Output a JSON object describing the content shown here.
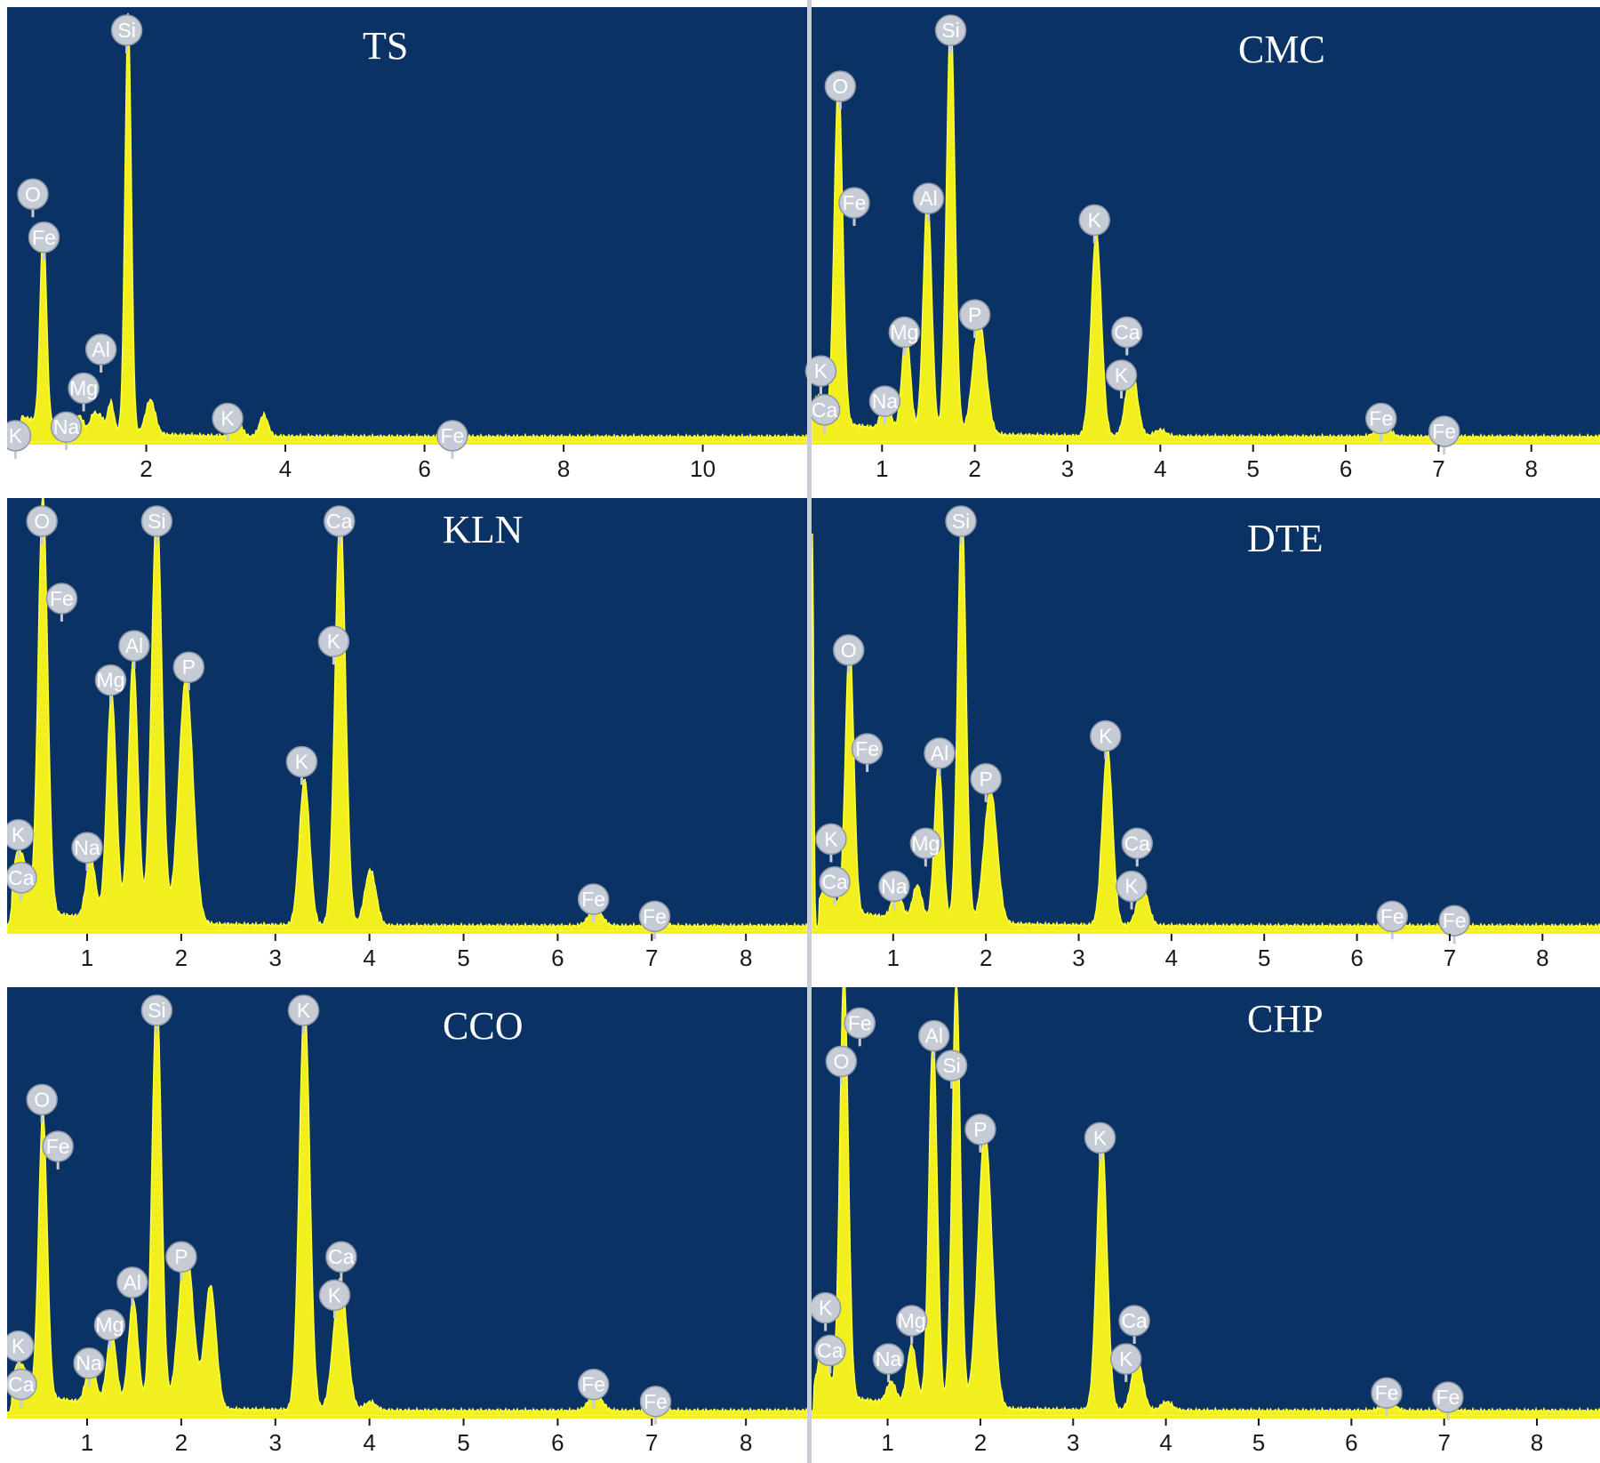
{
  "figure": {
    "description_free": true,
    "layout": "3 rows x 2 columns",
    "colors": {
      "plot_background": "#0a3264",
      "spectrum": "#f2ef1f",
      "badge": "#c6ccd6",
      "title": "#ffffff"
    }
  },
  "chart_data": [
    {
      "type": "area",
      "title": "TS",
      "xlabel": "",
      "ylabel": "",
      "xlim": [
        0,
        11.5
      ],
      "ylim": [
        0,
        100
      ],
      "xticks": [
        2,
        4,
        6,
        8,
        10
      ],
      "tick_labels": [
        "2",
        "4",
        "6",
        "8",
        "10"
      ],
      "peaks": [
        {
          "x": 0.52,
          "y": 46,
          "w": 0.045
        },
        {
          "x": 1.04,
          "y": 3,
          "w": 0.05
        },
        {
          "x": 1.25,
          "y": 4,
          "w": 0.05
        },
        {
          "x": 1.35,
          "y": 3,
          "w": 0.04
        },
        {
          "x": 1.49,
          "y": 7,
          "w": 0.045
        },
        {
          "x": 1.74,
          "y": 97,
          "w": 0.045
        },
        {
          "x": 2.06,
          "y": 8,
          "w": 0.07
        },
        {
          "x": 3.31,
          "y": 4,
          "w": 0.06
        },
        {
          "x": 3.69,
          "y": 5,
          "w": 0.06
        }
      ],
      "labels": [
        {
          "el": "Si",
          "x": 1.72,
          "y": 100
        },
        {
          "el": "O",
          "x": 0.37,
          "y": 62
        },
        {
          "el": "Fe",
          "x": 0.53,
          "y": 52
        },
        {
          "el": "Al",
          "x": 1.35,
          "y": 26
        },
        {
          "el": "Mg",
          "x": 1.1,
          "y": 17
        },
        {
          "el": "Na",
          "x": 0.85,
          "y": 8
        },
        {
          "el": "K",
          "x": 0.12,
          "y": 6
        },
        {
          "el": "K",
          "x": 3.17,
          "y": 10
        },
        {
          "el": "Fe",
          "x": 6.4,
          "y": 6
        }
      ]
    },
    {
      "type": "area",
      "title": "CMC",
      "xlabel": "",
      "ylabel": "",
      "xlim": [
        0.24,
        8.74
      ],
      "ylim": [
        0,
        100
      ],
      "xticks": [
        1,
        2,
        3,
        4,
        5,
        6,
        7,
        8
      ],
      "tick_labels": [
        "1",
        "2",
        "3",
        "4",
        "5",
        "6",
        "7",
        "8"
      ],
      "peaks": [
        {
          "x": 0.28,
          "y": 3,
          "w": 0.04
        },
        {
          "x": 0.34,
          "y": 4,
          "w": 0.04
        },
        {
          "x": 0.53,
          "y": 80,
          "w": 0.045
        },
        {
          "x": 1.04,
          "y": 8,
          "w": 0.045
        },
        {
          "x": 1.26,
          "y": 23,
          "w": 0.045
        },
        {
          "x": 1.49,
          "y": 55,
          "w": 0.045
        },
        {
          "x": 1.74,
          "y": 97,
          "w": 0.045
        },
        {
          "x": 2.05,
          "y": 26,
          "w": 0.07
        },
        {
          "x": 3.31,
          "y": 47,
          "w": 0.055
        },
        {
          "x": 3.69,
          "y": 16,
          "w": 0.06
        },
        {
          "x": 4.0,
          "y": 1.5,
          "w": 0.06
        },
        {
          "x": 6.4,
          "y": 3,
          "w": 0.07
        },
        {
          "x": 7.06,
          "y": 1,
          "w": 0.07
        }
      ],
      "labels": [
        {
          "el": "Si",
          "x": 1.74,
          "y": 100
        },
        {
          "el": "O",
          "x": 0.55,
          "y": 87
        },
        {
          "el": "Fe",
          "x": 0.7,
          "y": 60
        },
        {
          "el": "Al",
          "x": 1.5,
          "y": 61
        },
        {
          "el": "K",
          "x": 3.29,
          "y": 56
        },
        {
          "el": "P",
          "x": 2.0,
          "y": 34
        },
        {
          "el": "Mg",
          "x": 1.24,
          "y": 30
        },
        {
          "el": "Ca",
          "x": 3.64,
          "y": 30
        },
        {
          "el": "K",
          "x": 3.58,
          "y": 20
        },
        {
          "el": "K",
          "x": 0.34,
          "y": 21
        },
        {
          "el": "Ca",
          "x": 0.38,
          "y": 12
        },
        {
          "el": "Na",
          "x": 1.03,
          "y": 14
        },
        {
          "el": "Fe",
          "x": 6.38,
          "y": 10
        },
        {
          "el": "Fe",
          "x": 7.06,
          "y": 7
        }
      ]
    },
    {
      "type": "area",
      "title": "KLN",
      "xlabel": "",
      "ylabel": "",
      "xlim": [
        0.15,
        8.65
      ],
      "ylim": [
        0,
        100
      ],
      "xticks": [
        1,
        2,
        3,
        4,
        5,
        6,
        7,
        8
      ],
      "tick_labels": [
        "1",
        "2",
        "3",
        "4",
        "5",
        "6",
        "7",
        "8"
      ],
      "peaks": [
        {
          "x": 0.26,
          "y": 12,
          "w": 0.045
        },
        {
          "x": 0.34,
          "y": 8,
          "w": 0.04
        },
        {
          "x": 0.53,
          "y": 97,
          "w": 0.05
        },
        {
          "x": 1.04,
          "y": 14,
          "w": 0.05
        },
        {
          "x": 1.26,
          "y": 53,
          "w": 0.05
        },
        {
          "x": 1.49,
          "y": 61,
          "w": 0.05
        },
        {
          "x": 1.74,
          "y": 97,
          "w": 0.055
        },
        {
          "x": 2.05,
          "y": 57,
          "w": 0.075
        },
        {
          "x": 3.31,
          "y": 34,
          "w": 0.055
        },
        {
          "x": 3.69,
          "y": 97,
          "w": 0.055
        },
        {
          "x": 4.01,
          "y": 13,
          "w": 0.06
        },
        {
          "x": 6.4,
          "y": 4,
          "w": 0.07
        },
        {
          "x": 7.06,
          "y": 1.5,
          "w": 0.07
        }
      ],
      "labels": [
        {
          "el": "O",
          "x": 0.52,
          "y": 100
        },
        {
          "el": "Si",
          "x": 1.74,
          "y": 100
        },
        {
          "el": "Ca",
          "x": 3.68,
          "y": 100
        },
        {
          "el": "Fe",
          "x": 0.73,
          "y": 82
        },
        {
          "el": "Al",
          "x": 1.5,
          "y": 71
        },
        {
          "el": "Mg",
          "x": 1.25,
          "y": 63
        },
        {
          "el": "P",
          "x": 2.08,
          "y": 66
        },
        {
          "el": "K",
          "x": 3.62,
          "y": 72
        },
        {
          "el": "K",
          "x": 3.28,
          "y": 44
        },
        {
          "el": "Na",
          "x": 1.0,
          "y": 24
        },
        {
          "el": "K",
          "x": 0.27,
          "y": 27
        },
        {
          "el": "Ca",
          "x": 0.3,
          "y": 17
        },
        {
          "el": "Fe",
          "x": 6.38,
          "y": 12
        },
        {
          "el": "Fe",
          "x": 7.03,
          "y": 8
        }
      ]
    },
    {
      "type": "area",
      "title": "DTE",
      "xlabel": "",
      "ylabel": "",
      "xlim": [
        0.12,
        8.62
      ],
      "ylim": [
        0,
        100
      ],
      "xticks": [
        1,
        2,
        3,
        4,
        5,
        6,
        7,
        8
      ],
      "tick_labels": [
        "1",
        "2",
        "3",
        "4",
        "5",
        "6",
        "7",
        "8"
      ],
      "peaks": [
        {
          "x": 0.13,
          "y": 92,
          "w": 0.012
        },
        {
          "x": 0.26,
          "y": 4,
          "w": 0.04
        },
        {
          "x": 0.34,
          "y": 3,
          "w": 0.04
        },
        {
          "x": 0.53,
          "y": 63,
          "w": 0.045
        },
        {
          "x": 1.04,
          "y": 7,
          "w": 0.05
        },
        {
          "x": 1.26,
          "y": 8,
          "w": 0.05
        },
        {
          "x": 1.49,
          "y": 37,
          "w": 0.045
        },
        {
          "x": 1.74,
          "y": 97,
          "w": 0.045
        },
        {
          "x": 2.05,
          "y": 31,
          "w": 0.07
        },
        {
          "x": 3.31,
          "y": 41,
          "w": 0.055
        },
        {
          "x": 3.69,
          "y": 9,
          "w": 0.06
        },
        {
          "x": 6.4,
          "y": 1,
          "w": 0.07
        },
        {
          "x": 7.06,
          "y": 0.5,
          "w": 0.07
        }
      ],
      "labels": [
        {
          "el": "Si",
          "x": 1.73,
          "y": 100
        },
        {
          "el": "O",
          "x": 0.52,
          "y": 70
        },
        {
          "el": "Fe",
          "x": 0.72,
          "y": 47
        },
        {
          "el": "Al",
          "x": 1.5,
          "y": 46
        },
        {
          "el": "K",
          "x": 3.29,
          "y": 50
        },
        {
          "el": "P",
          "x": 2.0,
          "y": 40
        },
        {
          "el": "Mg",
          "x": 1.35,
          "y": 25
        },
        {
          "el": "Ca",
          "x": 3.63,
          "y": 25
        },
        {
          "el": "K",
          "x": 3.57,
          "y": 15
        },
        {
          "el": "Na",
          "x": 1.01,
          "y": 15
        },
        {
          "el": "K",
          "x": 0.33,
          "y": 26
        },
        {
          "el": "Ca",
          "x": 0.37,
          "y": 16
        },
        {
          "el": "Fe",
          "x": 6.38,
          "y": 8
        },
        {
          "el": "Fe",
          "x": 7.05,
          "y": 7
        }
      ]
    },
    {
      "type": "area",
      "title": "CCO",
      "xlabel": "",
      "ylabel": "",
      "xlim": [
        0.15,
        8.65
      ],
      "ylim": [
        0,
        100
      ],
      "xticks": [
        1,
        2,
        3,
        4,
        5,
        6,
        7,
        8
      ],
      "tick_labels": [
        "1",
        "2",
        "3",
        "4",
        "5",
        "6",
        "7",
        "8"
      ],
      "peaks": [
        {
          "x": 0.26,
          "y": 6,
          "w": 0.04
        },
        {
          "x": 0.34,
          "y": 5,
          "w": 0.04
        },
        {
          "x": 0.53,
          "y": 67,
          "w": 0.045
        },
        {
          "x": 1.04,
          "y": 10,
          "w": 0.05
        },
        {
          "x": 1.26,
          "y": 17,
          "w": 0.05
        },
        {
          "x": 1.49,
          "y": 25,
          "w": 0.05
        },
        {
          "x": 1.74,
          "y": 97,
          "w": 0.05
        },
        {
          "x": 2.05,
          "y": 39,
          "w": 0.075
        },
        {
          "x": 2.31,
          "y": 29,
          "w": 0.06
        },
        {
          "x": 3.31,
          "y": 97,
          "w": 0.055
        },
        {
          "x": 3.69,
          "y": 31,
          "w": 0.07
        },
        {
          "x": 4.01,
          "y": 2,
          "w": 0.06
        },
        {
          "x": 6.4,
          "y": 4,
          "w": 0.07
        },
        {
          "x": 7.06,
          "y": 1,
          "w": 0.07
        }
      ],
      "labels": [
        {
          "el": "Si",
          "x": 1.74,
          "y": 100
        },
        {
          "el": "K",
          "x": 3.3,
          "y": 100
        },
        {
          "el": "O",
          "x": 0.52,
          "y": 79
        },
        {
          "el": "Fe",
          "x": 0.69,
          "y": 68
        },
        {
          "el": "P",
          "x": 2.0,
          "y": 42
        },
        {
          "el": "Ca",
          "x": 3.7,
          "y": 42
        },
        {
          "el": "Al",
          "x": 1.48,
          "y": 36
        },
        {
          "el": "K",
          "x": 3.63,
          "y": 33
        },
        {
          "el": "Mg",
          "x": 1.24,
          "y": 26
        },
        {
          "el": "Na",
          "x": 1.02,
          "y": 17
        },
        {
          "el": "K",
          "x": 0.27,
          "y": 21
        },
        {
          "el": "Ca",
          "x": 0.3,
          "y": 12
        },
        {
          "el": "Fe",
          "x": 6.38,
          "y": 12
        },
        {
          "el": "Fe",
          "x": 7.04,
          "y": 8
        }
      ]
    },
    {
      "type": "area",
      "title": "CHP",
      "xlabel": "",
      "ylabel": "",
      "xlim": [
        0.18,
        8.68
      ],
      "ylim": [
        0,
        100
      ],
      "xticks": [
        1,
        2,
        3,
        4,
        5,
        6,
        7,
        8
      ],
      "tick_labels": [
        "1",
        "2",
        "3",
        "4",
        "5",
        "6",
        "7",
        "8"
      ],
      "peaks": [
        {
          "x": 0.28,
          "y": 8,
          "w": 0.04
        },
        {
          "x": 0.34,
          "y": 6,
          "w": 0.04
        },
        {
          "x": 0.53,
          "y": 100,
          "w": 0.045
        },
        {
          "x": 1.04,
          "y": 5,
          "w": 0.05
        },
        {
          "x": 1.26,
          "y": 14,
          "w": 0.05
        },
        {
          "x": 1.49,
          "y": 87,
          "w": 0.045
        },
        {
          "x": 1.74,
          "y": 100,
          "w": 0.045
        },
        {
          "x": 2.05,
          "y": 65,
          "w": 0.075
        },
        {
          "x": 3.31,
          "y": 64,
          "w": 0.055
        },
        {
          "x": 3.69,
          "y": 12,
          "w": 0.06
        },
        {
          "x": 4.01,
          "y": 2,
          "w": 0.06
        },
        {
          "x": 6.4,
          "y": 2,
          "w": 0.07
        },
        {
          "x": 7.06,
          "y": 0.5,
          "w": 0.07
        }
      ],
      "labels": [
        {
          "el": "Fe",
          "x": 0.7,
          "y": 97
        },
        {
          "el": "Al",
          "x": 1.5,
          "y": 94
        },
        {
          "el": "O",
          "x": 0.5,
          "y": 88
        },
        {
          "el": "Si",
          "x": 1.69,
          "y": 87
        },
        {
          "el": "P",
          "x": 2.0,
          "y": 72
        },
        {
          "el": "K",
          "x": 3.29,
          "y": 70
        },
        {
          "el": "K",
          "x": 0.33,
          "y": 30
        },
        {
          "el": "Mg",
          "x": 1.26,
          "y": 27
        },
        {
          "el": "Ca",
          "x": 3.66,
          "y": 27
        },
        {
          "el": "Ca",
          "x": 0.38,
          "y": 20
        },
        {
          "el": "K",
          "x": 3.57,
          "y": 18
        },
        {
          "el": "Na",
          "x": 1.01,
          "y": 18
        },
        {
          "el": "Fe",
          "x": 6.38,
          "y": 10
        },
        {
          "el": "Fe",
          "x": 7.04,
          "y": 9
        }
      ]
    }
  ]
}
